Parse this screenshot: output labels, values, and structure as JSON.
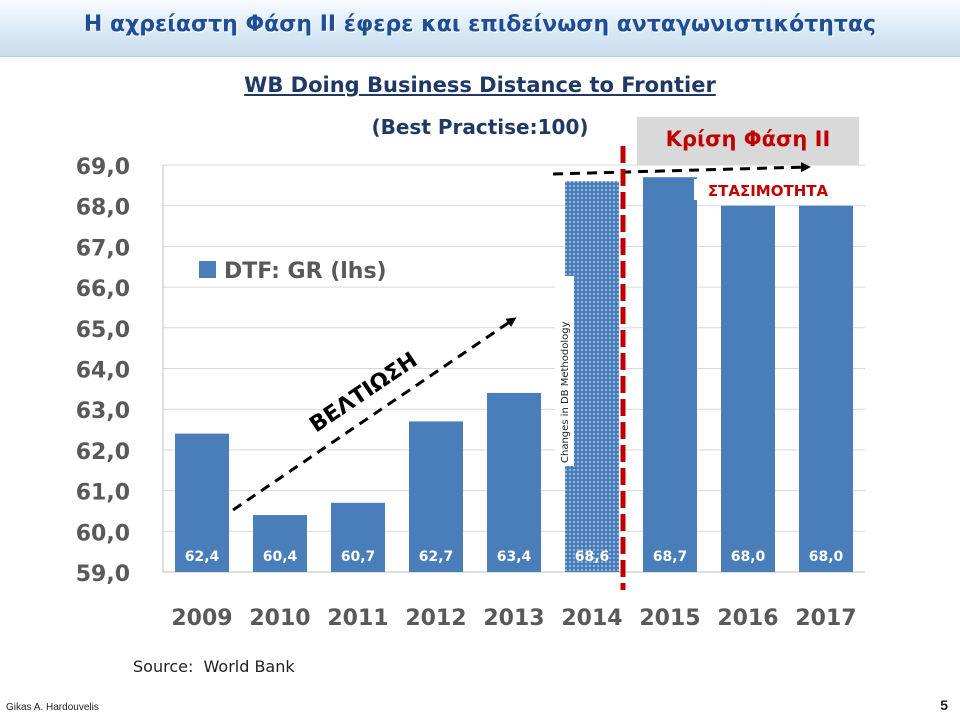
{
  "slide": {
    "headline": "Η αχρείαστη Φάση ΙΙ έφερε και επιδείνωση ανταγωνιστικότητας",
    "crisis_label": "Κρίση Φάση ΙΙ",
    "source": "Source:  World Bank",
    "author": "Gikas A. Hardouvelis",
    "page_number": "5"
  },
  "colors": {
    "bar": "#4a7ebb",
    "bar_label": "#ffffff",
    "axis_text": "#595959",
    "gridline": "#d9d9d9",
    "crisis_line": "#c00000",
    "arrow": "#000000",
    "headline": "#1f4e96"
  },
  "chart_data": {
    "type": "bar",
    "title": "WB Doing Business Distance to Frontier",
    "subtitle": "(Best Practise:100)",
    "categories": [
      "2009",
      "2010",
      "2011",
      "2012",
      "2013",
      "2014",
      "2015",
      "2016",
      "2017"
    ],
    "series": [
      {
        "name": "DTF: GR (lhs)",
        "values": [
          62.4,
          60.4,
          60.7,
          62.7,
          63.4,
          68.6,
          68.7,
          68.0,
          68.0
        ]
      }
    ],
    "value_labels": [
      "62,4",
      "60,4",
      "60,7",
      "62,7",
      "63,4",
      "68,6",
      "68,7",
      "68,0",
      "68,0"
    ],
    "highlighted_category": "2014",
    "ylim": [
      59,
      69
    ],
    "yticks": [
      "59,0",
      "60,0",
      "61,0",
      "62,0",
      "63,0",
      "64,0",
      "65,0",
      "66,0",
      "67,0",
      "68,0",
      "69,0"
    ],
    "grid": true,
    "legend_position": "top-left",
    "annotations": {
      "improvement": "ΒΕΛΤΙΩΣΗ",
      "stagnation": "ΣΤΑΣΙΜΟΤΗΤΑ",
      "methodology_note": "Changes in DB Methodology"
    }
  }
}
